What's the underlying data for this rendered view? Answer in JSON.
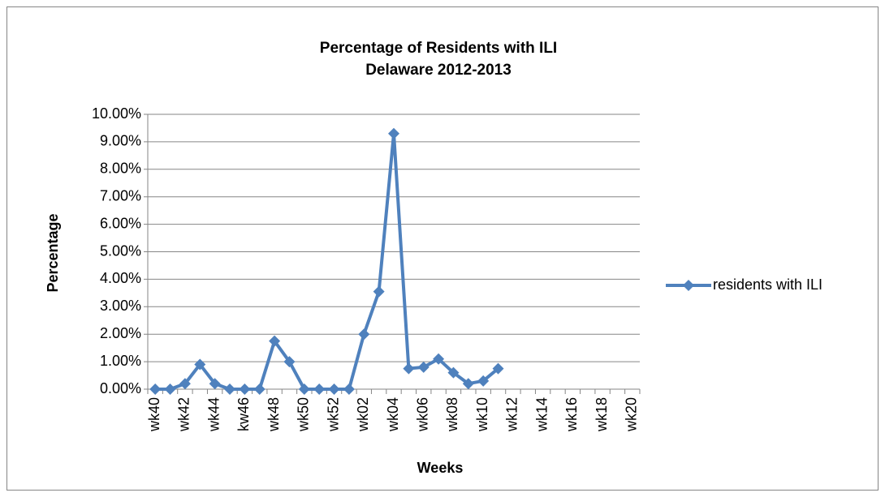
{
  "chart_data": {
    "type": "line",
    "title": "Percentage of Residents with ILI",
    "subtitle": "Delaware 2012-2013",
    "y_label": "Percentage",
    "x_label": "Weeks",
    "categories": [
      "wk40",
      null,
      "wk42",
      null,
      "wk44",
      null,
      "kw46",
      null,
      "wk48",
      null,
      "wk50",
      null,
      "wk52",
      null,
      "wk02",
      null,
      "wk04",
      null,
      "wk06",
      null,
      "wk08",
      null,
      "wk10",
      null,
      "wk12",
      null,
      "wk14",
      null,
      "wk16",
      null,
      "wk18",
      null,
      "wk20"
    ],
    "series": [
      {
        "name": "residents with ILI",
        "color": "#4f81bd",
        "values": [
          0,
          0,
          0.2,
          0.9,
          0.2,
          0,
          0,
          0,
          1.75,
          1.0,
          0,
          0,
          0,
          0,
          2.0,
          3.55,
          9.3,
          0.75,
          0.8,
          1.1,
          0.6,
          0.2,
          0.3,
          0.75,
          null,
          null,
          null,
          null,
          null,
          null,
          null,
          null,
          null
        ]
      }
    ],
    "ylim": [
      0,
      10
    ],
    "yticks": [
      {
        "value": 0,
        "label": "0.00%"
      },
      {
        "value": 1,
        "label": "1.00%"
      },
      {
        "value": 2,
        "label": "2.00%"
      },
      {
        "value": 3,
        "label": "3.00%"
      },
      {
        "value": 4,
        "label": "4.00%"
      },
      {
        "value": 5,
        "label": "5.00%"
      },
      {
        "value": 6,
        "label": "6.00%"
      },
      {
        "value": 7,
        "label": "7.00%"
      },
      {
        "value": 8,
        "label": "8.00%"
      },
      {
        "value": 9,
        "label": "9.00%"
      },
      {
        "value": 10,
        "label": "10.00%"
      }
    ],
    "grid": true,
    "legend": "right"
  }
}
